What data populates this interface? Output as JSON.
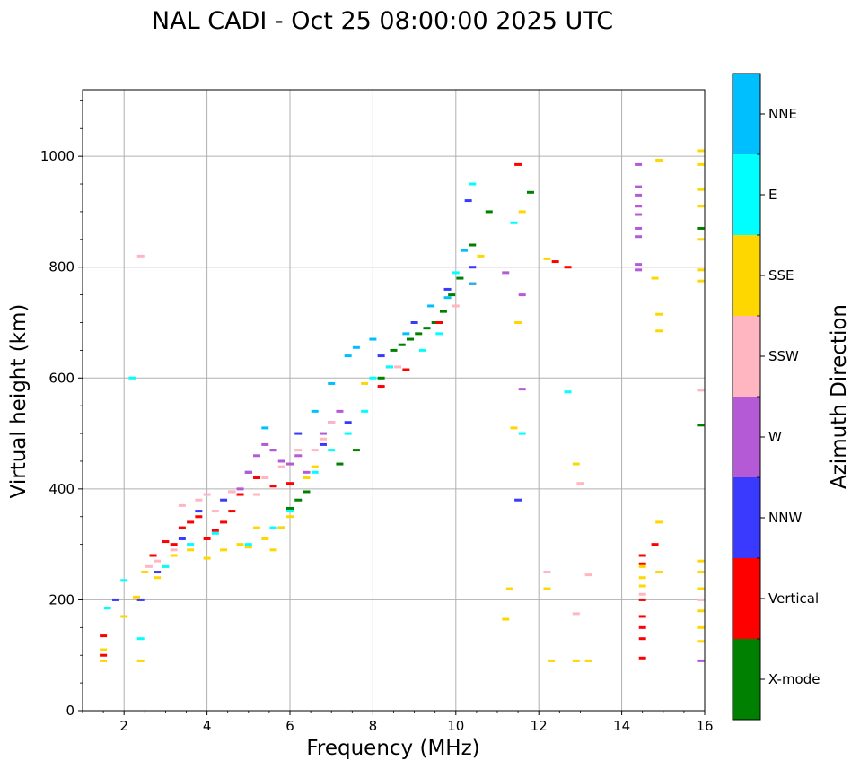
{
  "chart_data": {
    "type": "scatter",
    "title": "NAL CADI - Oct 25 08:00:00 2025 UTC",
    "xlabel": "Frequency (MHz)",
    "ylabel": "Virtual height (km)",
    "xlim": [
      1,
      16
    ],
    "ylim": [
      0,
      1120
    ],
    "xticks": [
      2,
      4,
      6,
      8,
      10,
      12,
      14,
      16
    ],
    "yticks": [
      0,
      200,
      400,
      600,
      800,
      1000
    ],
    "grid": true,
    "colorbar": {
      "label": "Azimuth Direction",
      "categories": [
        {
          "name": "X-mode",
          "color": "#008000"
        },
        {
          "name": "Vertical",
          "color": "#ff0000"
        },
        {
          "name": "NNW",
          "color": "#3a3aff"
        },
        {
          "name": "W",
          "color": "#b45ad6"
        },
        {
          "name": "SSW",
          "color": "#ffb6c1"
        },
        {
          "name": "SSE",
          "color": "#ffd700"
        },
        {
          "name": "E",
          "color": "#00ffff"
        },
        {
          "name": "NNE",
          "color": "#00bfff"
        }
      ]
    },
    "series": [
      {
        "name": "X-mode",
        "points": [
          [
            5.8,
            330
          ],
          [
            6.0,
            365
          ],
          [
            6.2,
            380
          ],
          [
            6.4,
            395
          ],
          [
            7.2,
            445
          ],
          [
            7.6,
            470
          ],
          [
            8.2,
            600
          ],
          [
            8.5,
            650
          ],
          [
            8.7,
            660
          ],
          [
            8.9,
            670
          ],
          [
            9.1,
            680
          ],
          [
            9.3,
            690
          ],
          [
            9.5,
            700
          ],
          [
            9.7,
            720
          ],
          [
            9.9,
            750
          ],
          [
            10.1,
            780
          ],
          [
            10.4,
            840
          ],
          [
            10.8,
            900
          ],
          [
            11.8,
            935
          ],
          [
            15.9,
            870
          ],
          [
            15.9,
            515
          ]
        ]
      },
      {
        "name": "Vertical",
        "points": [
          [
            1.5,
            100
          ],
          [
            1.5,
            135
          ],
          [
            2.7,
            280
          ],
          [
            3.0,
            305
          ],
          [
            3.2,
            300
          ],
          [
            3.4,
            330
          ],
          [
            3.6,
            340
          ],
          [
            3.8,
            350
          ],
          [
            4.0,
            310
          ],
          [
            4.2,
            325
          ],
          [
            4.4,
            340
          ],
          [
            4.6,
            360
          ],
          [
            4.8,
            390
          ],
          [
            5.2,
            420
          ],
          [
            5.6,
            405
          ],
          [
            6.0,
            410
          ],
          [
            8.2,
            585
          ],
          [
            8.8,
            615
          ],
          [
            9.6,
            700
          ],
          [
            10.4,
            770
          ],
          [
            11.5,
            985
          ],
          [
            12.4,
            810
          ],
          [
            12.7,
            800
          ],
          [
            14.5,
            95
          ],
          [
            14.5,
            130
          ],
          [
            14.5,
            150
          ],
          [
            14.5,
            170
          ],
          [
            14.5,
            200
          ],
          [
            14.5,
            265
          ],
          [
            14.5,
            280
          ],
          [
            14.8,
            300
          ]
        ]
      },
      {
        "name": "NNW",
        "points": [
          [
            1.8,
            200
          ],
          [
            2.4,
            200
          ],
          [
            2.8,
            250
          ],
          [
            3.4,
            310
          ],
          [
            3.8,
            360
          ],
          [
            4.4,
            380
          ],
          [
            5.0,
            430
          ],
          [
            5.6,
            470
          ],
          [
            6.2,
            500
          ],
          [
            6.8,
            480
          ],
          [
            7.4,
            520
          ],
          [
            8.2,
            640
          ],
          [
            9.0,
            700
          ],
          [
            9.8,
            760
          ],
          [
            10.4,
            800
          ],
          [
            10.3,
            920
          ],
          [
            11.5,
            380
          ]
        ]
      },
      {
        "name": "W",
        "points": [
          [
            4.6,
            395
          ],
          [
            4.8,
            400
          ],
          [
            5.0,
            430
          ],
          [
            5.2,
            460
          ],
          [
            5.4,
            480
          ],
          [
            5.6,
            470
          ],
          [
            5.8,
            450
          ],
          [
            6.0,
            445
          ],
          [
            6.2,
            460
          ],
          [
            6.4,
            430
          ],
          [
            6.8,
            500
          ],
          [
            7.0,
            520
          ],
          [
            7.2,
            540
          ],
          [
            8.4,
            620
          ],
          [
            11.2,
            790
          ],
          [
            11.6,
            750
          ],
          [
            11.6,
            580
          ],
          [
            14.4,
            985
          ],
          [
            14.4,
            945
          ],
          [
            14.4,
            930
          ],
          [
            14.4,
            910
          ],
          [
            14.4,
            895
          ],
          [
            14.4,
            870
          ],
          [
            14.4,
            855
          ],
          [
            14.4,
            805
          ],
          [
            14.4,
            795
          ],
          [
            15.9,
            90
          ]
        ]
      },
      {
        "name": "SSW",
        "points": [
          [
            2.4,
            820
          ],
          [
            2.6,
            260
          ],
          [
            2.8,
            270
          ],
          [
            3.2,
            290
          ],
          [
            3.4,
            370
          ],
          [
            3.6,
            300
          ],
          [
            3.8,
            380
          ],
          [
            4.0,
            390
          ],
          [
            4.2,
            360
          ],
          [
            4.6,
            395
          ],
          [
            5.2,
            390
          ],
          [
            5.4,
            420
          ],
          [
            5.8,
            440
          ],
          [
            6.2,
            470
          ],
          [
            6.6,
            470
          ],
          [
            6.8,
            490
          ],
          [
            7.0,
            520
          ],
          [
            8.6,
            620
          ],
          [
            10.0,
            730
          ],
          [
            12.2,
            250
          ],
          [
            12.9,
            175
          ],
          [
            13.0,
            410
          ],
          [
            13.2,
            245
          ],
          [
            14.5,
            210
          ],
          [
            15.9,
            578
          ],
          [
            15.9,
            200
          ]
        ]
      },
      {
        "name": "SSE",
        "points": [
          [
            1.5,
            90
          ],
          [
            1.5,
            110
          ],
          [
            2.0,
            170
          ],
          [
            2.3,
            205
          ],
          [
            2.4,
            90
          ],
          [
            2.5,
            250
          ],
          [
            2.8,
            240
          ],
          [
            3.0,
            260
          ],
          [
            3.2,
            280
          ],
          [
            3.6,
            290
          ],
          [
            4.0,
            275
          ],
          [
            4.4,
            290
          ],
          [
            4.8,
            300
          ],
          [
            5.0,
            295
          ],
          [
            5.2,
            330
          ],
          [
            5.4,
            310
          ],
          [
            5.6,
            290
          ],
          [
            5.8,
            330
          ],
          [
            6.0,
            350
          ],
          [
            6.4,
            420
          ],
          [
            6.6,
            440
          ],
          [
            7.8,
            590
          ],
          [
            10.6,
            820
          ],
          [
            11.2,
            165
          ],
          [
            11.3,
            220
          ],
          [
            11.4,
            510
          ],
          [
            11.5,
            700
          ],
          [
            11.6,
            900
          ],
          [
            12.2,
            220
          ],
          [
            12.2,
            815
          ],
          [
            12.3,
            90
          ],
          [
            12.9,
            90
          ],
          [
            12.9,
            445
          ],
          [
            13.2,
            90
          ],
          [
            14.5,
            225
          ],
          [
            14.5,
            240
          ],
          [
            14.5,
            260
          ],
          [
            14.8,
            780
          ],
          [
            14.9,
            715
          ],
          [
            14.9,
            685
          ],
          [
            14.9,
            340
          ],
          [
            14.9,
            250
          ],
          [
            14.9,
            993
          ],
          [
            15.9,
            1010
          ],
          [
            15.9,
            985
          ],
          [
            15.9,
            940
          ],
          [
            15.9,
            910
          ],
          [
            15.9,
            850
          ],
          [
            15.9,
            795
          ],
          [
            15.9,
            775
          ],
          [
            15.9,
            270
          ],
          [
            15.9,
            250
          ],
          [
            15.9,
            220
          ],
          [
            15.9,
            180
          ],
          [
            15.9,
            150
          ],
          [
            15.9,
            125
          ]
        ]
      },
      {
        "name": "E",
        "points": [
          [
            1.6,
            185
          ],
          [
            2.0,
            235
          ],
          [
            2.2,
            600
          ],
          [
            2.4,
            130
          ],
          [
            3.0,
            260
          ],
          [
            3.6,
            300
          ],
          [
            4.2,
            320
          ],
          [
            5.0,
            300
          ],
          [
            5.6,
            330
          ],
          [
            6.0,
            360
          ],
          [
            6.6,
            430
          ],
          [
            7.0,
            470
          ],
          [
            7.4,
            500
          ],
          [
            7.8,
            540
          ],
          [
            8.0,
            600
          ],
          [
            8.4,
            620
          ],
          [
            9.2,
            650
          ],
          [
            9.6,
            680
          ],
          [
            10.0,
            790
          ],
          [
            10.4,
            950
          ],
          [
            11.4,
            880
          ],
          [
            11.6,
            500
          ],
          [
            12.7,
            575
          ]
        ]
      },
      {
        "name": "NNE",
        "points": [
          [
            5.4,
            510
          ],
          [
            6.6,
            540
          ],
          [
            7.0,
            590
          ],
          [
            7.4,
            640
          ],
          [
            7.6,
            655
          ],
          [
            8.0,
            670
          ],
          [
            8.8,
            680
          ],
          [
            9.4,
            730
          ],
          [
            9.8,
            745
          ],
          [
            10.4,
            770
          ],
          [
            10.2,
            830
          ]
        ]
      }
    ]
  }
}
